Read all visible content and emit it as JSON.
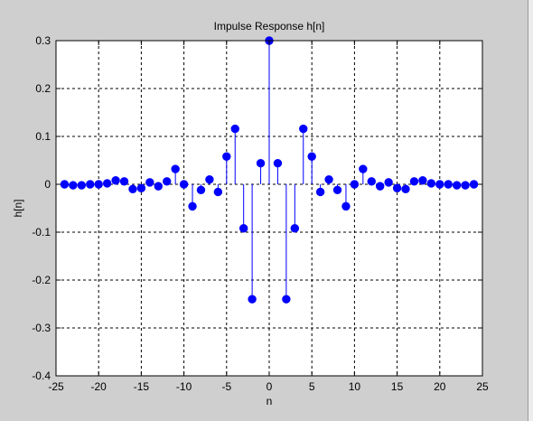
{
  "colors": {
    "figure_background": "#cfcfcf",
    "axes_background": "#ffffff",
    "stem_color": "#0000ff",
    "grid_color": "#000000"
  },
  "chart_data": {
    "type": "stem",
    "title": "Impulse Response h[n]",
    "xlabel": "n",
    "ylabel": "h[n]",
    "xlim": [
      -25,
      25
    ],
    "ylim": [
      -0.4,
      0.3
    ],
    "xticks": [
      -25,
      -20,
      -15,
      -10,
      -5,
      0,
      5,
      10,
      15,
      20,
      25
    ],
    "yticks": [
      -0.4,
      -0.3,
      -0.2,
      -0.1,
      0,
      0.1,
      0.2,
      0.3
    ],
    "xtick_labels": [
      "-25",
      "-20",
      "-15",
      "-10",
      "-5",
      "0",
      "5",
      "10",
      "15",
      "20",
      "25"
    ],
    "ytick_labels": [
      "-0.4",
      "-0.3",
      "-0.2",
      "-0.1",
      "0",
      "0.1",
      "0.2",
      "0.3"
    ],
    "grid": true,
    "grid_style": "dashed",
    "marker": "filled-circle",
    "n": [
      -24,
      -23,
      -22,
      -21,
      -20,
      -19,
      -18,
      -17,
      -16,
      -15,
      -14,
      -13,
      -12,
      -11,
      -10,
      -9,
      -8,
      -7,
      -6,
      -5,
      -4,
      -3,
      -2,
      -1,
      0,
      1,
      2,
      3,
      4,
      5,
      6,
      7,
      8,
      9,
      10,
      11,
      12,
      13,
      14,
      15,
      16,
      17,
      18,
      19,
      20,
      21,
      22,
      23,
      24
    ],
    "h": [
      0.0,
      -0.002,
      -0.002,
      0.0,
      0.0,
      0.002,
      0.008,
      0.006,
      -0.01,
      -0.008,
      0.004,
      -0.004,
      0.006,
      0.032,
      0.0,
      -0.046,
      -0.012,
      0.01,
      -0.016,
      0.058,
      0.116,
      -0.092,
      -0.24,
      0.044,
      0.3,
      0.044,
      -0.24,
      -0.092,
      0.116,
      0.058,
      -0.016,
      0.01,
      -0.012,
      -0.046,
      0.0,
      0.032,
      0.006,
      -0.004,
      0.004,
      -0.008,
      -0.01,
      0.006,
      0.008,
      0.002,
      0.0,
      0.0,
      -0.002,
      -0.002,
      0.0
    ]
  }
}
